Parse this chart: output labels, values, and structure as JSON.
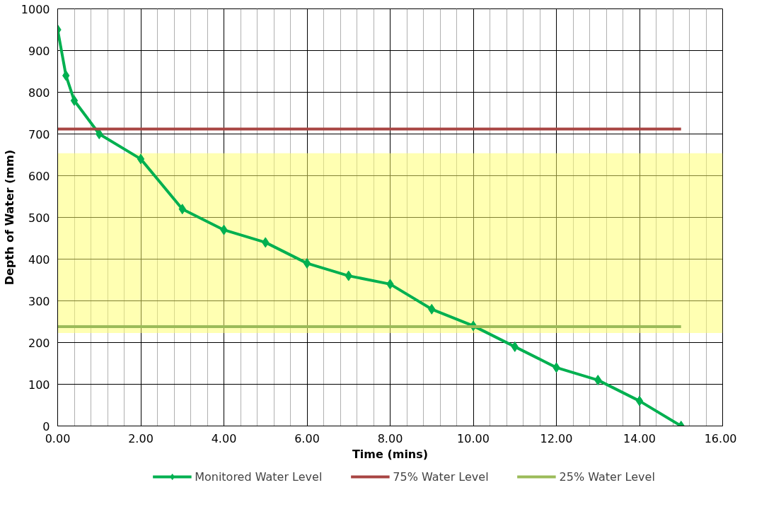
{
  "chart_data": {
    "type": "line",
    "xlabel": "Time (mins)",
    "ylabel": "Depth of Water (mm)",
    "xlim": [
      0,
      16
    ],
    "ylim": [
      0,
      1000
    ],
    "xticks": [
      {
        "value": 0,
        "label": "0.00"
      },
      {
        "value": 0.4,
        "label": null
      },
      {
        "value": 0.8,
        "label": null
      },
      {
        "value": 1.2,
        "label": null
      },
      {
        "value": 1.6,
        "label": null
      },
      {
        "value": 2,
        "label": "2.00"
      },
      {
        "value": 2.4,
        "label": null
      },
      {
        "value": 2.8,
        "label": null
      },
      {
        "value": 3.2,
        "label": null
      },
      {
        "value": 3.6,
        "label": null
      },
      {
        "value": 4,
        "label": "4.00"
      },
      {
        "value": 4.4,
        "label": null
      },
      {
        "value": 4.8,
        "label": null
      },
      {
        "value": 5.2,
        "label": null
      },
      {
        "value": 5.6,
        "label": null
      },
      {
        "value": 6,
        "label": "6.00"
      },
      {
        "value": 6.4,
        "label": null
      },
      {
        "value": 6.8,
        "label": null
      },
      {
        "value": 7.2,
        "label": null
      },
      {
        "value": 7.6,
        "label": null
      },
      {
        "value": 8,
        "label": "8.00"
      },
      {
        "value": 8.4,
        "label": null
      },
      {
        "value": 8.8,
        "label": null
      },
      {
        "value": 9.2,
        "label": null
      },
      {
        "value": 9.6,
        "label": null
      },
      {
        "value": 10,
        "label": "10.00"
      },
      {
        "value": 10.4,
        "label": null
      },
      {
        "value": 10.8,
        "label": null
      },
      {
        "value": 11.2,
        "label": null
      },
      {
        "value": 11.6,
        "label": null
      },
      {
        "value": 12,
        "label": "12.00"
      },
      {
        "value": 12.4,
        "label": null
      },
      {
        "value": 12.8,
        "label": null
      },
      {
        "value": 13.2,
        "label": null
      },
      {
        "value": 13.6,
        "label": null
      },
      {
        "value": 14,
        "label": "14.00"
      },
      {
        "value": 14.4,
        "label": null
      },
      {
        "value": 14.8,
        "label": null
      },
      {
        "value": 15.2,
        "label": null
      },
      {
        "value": 15.6,
        "label": null
      },
      {
        "value": 16,
        "label": "16.00"
      }
    ],
    "yticks": [
      0,
      100,
      200,
      300,
      400,
      500,
      600,
      700,
      800,
      900,
      1000
    ],
    "grid": true,
    "legend": "bottom",
    "bands": [
      {
        "axis": "y",
        "from": 223,
        "to": 654,
        "color": "#ffff66"
      }
    ],
    "series": [
      {
        "name": "Monitored Water Level",
        "color": "#00b050",
        "marker": "diamond",
        "x": [
          0,
          0.2,
          0.4,
          1,
          2,
          3,
          4,
          5,
          6,
          7,
          8,
          9,
          10,
          11,
          12,
          13,
          14,
          15
        ],
        "values": [
          950,
          840,
          780,
          700,
          640,
          520,
          470,
          440,
          390,
          360,
          340,
          280,
          240,
          190,
          140,
          110,
          60,
          0
        ]
      },
      {
        "name": "75% Water Level",
        "color": "#a84442",
        "x": [
          0,
          15
        ],
        "values": [
          712,
          712
        ]
      },
      {
        "name": "25% Water Level",
        "color": "#9bbb59",
        "x": [
          0,
          15
        ],
        "values": [
          238,
          238
        ]
      }
    ]
  }
}
